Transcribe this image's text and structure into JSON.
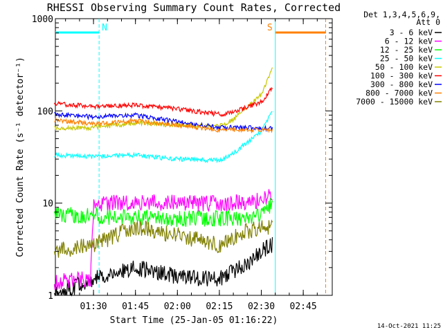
{
  "chart_data": {
    "type": "line",
    "title": "RHESSI Observing Summary Count Rates, Corrected",
    "xlabel": "Start Time (25-Jan-05 01:16:22)",
    "ylabel": "Corrected Count Rate (s⁻¹ detector⁻¹)",
    "y_scale": "log",
    "ylim": [
      1,
      1000
    ],
    "xlim_minutes_after_01_16_22": [
      0,
      99
    ],
    "x_ticks": [
      "01:30",
      "01:45",
      "02:00",
      "02:15",
      "02:30",
      "02:45"
    ],
    "y_ticks": [
      "1",
      "10",
      "100",
      "1000"
    ],
    "grid": false,
    "legend_position": "right",
    "legend_header": [
      "Det 1,3,4,5,6,9,",
      "Att 0"
    ],
    "timestamp": "14-Oct-2021 11:25",
    "flag_labels": [
      {
        "label": "N",
        "color": "#00ffff",
        "start": "01:16",
        "end": "01:32"
      },
      {
        "label": "S",
        "color": "#ff8000",
        "start": "02:35",
        "end": "02:53"
      }
    ],
    "vertical_markers": [
      {
        "time": "01:32",
        "color": "#00ffff",
        "style": "dashed"
      },
      {
        "time": "02:35",
        "color": "#00ffff",
        "style": "solid"
      },
      {
        "time": "02:53",
        "color": "#ff8000",
        "style": "dashed"
      }
    ],
    "series": [
      {
        "name": "3 - 6 keV",
        "color": "#000000",
        "x": [
          "01:16",
          "01:30",
          "01:45",
          "02:00",
          "02:15",
          "02:25",
          "02:30",
          "02:34"
        ],
        "y": [
          1,
          1.5,
          2,
          1.6,
          1.5,
          2.2,
          3,
          3.5
        ]
      },
      {
        "name": "6 - 12 keV",
        "color": "#ff00ff",
        "x": [
          "01:16",
          "01:29",
          "01:30",
          "01:45",
          "02:00",
          "02:15",
          "02:25",
          "02:30",
          "02:34"
        ],
        "y": [
          1.4,
          1.5,
          9.8,
          10.2,
          10,
          9.8,
          10.3,
          11,
          12
        ]
      },
      {
        "name": "12 - 25 keV",
        "color": "#00ff00",
        "x": [
          "01:16",
          "01:30",
          "01:45",
          "02:00",
          "02:15",
          "02:25",
          "02:30",
          "02:34"
        ],
        "y": [
          7.5,
          7.2,
          7,
          6.8,
          6.8,
          7,
          7.5,
          10
        ]
      },
      {
        "name": "25 - 50 keV",
        "color": "#00ffff",
        "x": [
          "01:16",
          "01:30",
          "01:45",
          "02:00",
          "02:15",
          "02:20",
          "02:25",
          "02:30",
          "02:34"
        ],
        "y": [
          33,
          32,
          33,
          30,
          29,
          35,
          45,
          60,
          100
        ]
      },
      {
        "name": "50 - 100 keV",
        "color": "#c8c800",
        "x": [
          "01:16",
          "01:30",
          "01:45",
          "02:00",
          "02:15",
          "02:20",
          "02:25",
          "02:30",
          "02:34"
        ],
        "y": [
          65,
          66,
          74,
          70,
          68,
          80,
          110,
          150,
          300
        ]
      },
      {
        "name": "100 - 300 keV",
        "color": "#ff0000",
        "x": [
          "01:16",
          "01:30",
          "01:45",
          "02:00",
          "02:15",
          "02:20",
          "02:25",
          "02:30",
          "02:34"
        ],
        "y": [
          120,
          112,
          116,
          105,
          92,
          96,
          110,
          125,
          180
        ]
      },
      {
        "name": "300 - 800 keV",
        "color": "#0000ff",
        "x": [
          "01:16",
          "01:30",
          "01:45",
          "02:00",
          "02:15",
          "02:25",
          "02:30",
          "02:34"
        ],
        "y": [
          92,
          86,
          90,
          76,
          66,
          66,
          65,
          64
        ]
      },
      {
        "name": "800 - 7000 keV",
        "color": "#ff8000",
        "x": [
          "01:16",
          "01:30",
          "01:45",
          "02:00",
          "02:15",
          "02:25",
          "02:30",
          "02:34"
        ],
        "y": [
          80,
          72,
          78,
          70,
          62,
          62,
          62,
          62
        ]
      },
      {
        "name": "7000 - 15000 keV",
        "color": "#808000",
        "x": [
          "01:16",
          "01:30",
          "01:45",
          "02:00",
          "02:15",
          "02:25",
          "02:30",
          "02:34"
        ],
        "y": [
          3,
          3.5,
          5.5,
          4.5,
          3.5,
          5,
          5.5,
          5.5
        ]
      }
    ]
  }
}
